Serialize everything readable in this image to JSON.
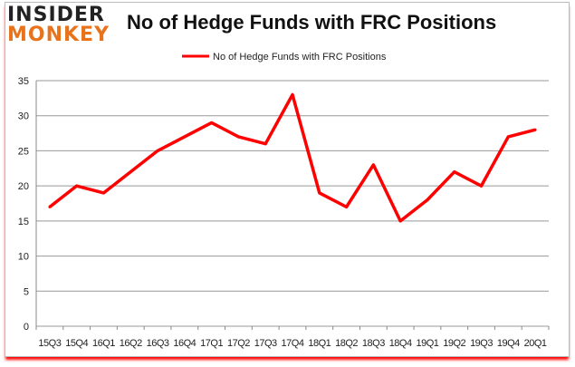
{
  "logo": {
    "line1": "INSIDER",
    "line2": "MONKEY"
  },
  "chart_data": {
    "type": "line",
    "title": "No of Hedge Funds with FRC Positions",
    "categories": [
      "15Q3",
      "15Q4",
      "16Q1",
      "16Q2",
      "16Q3",
      "16Q4",
      "17Q1",
      "17Q2",
      "17Q3",
      "17Q4",
      "18Q1",
      "18Q2",
      "18Q3",
      "18Q4",
      "19Q1",
      "19Q2",
      "19Q3",
      "19Q4",
      "20Q1"
    ],
    "series": [
      {
        "name": "No of Hedge Funds with FRC Positions",
        "color": "#ff0000",
        "values": [
          17,
          20,
          19,
          22,
          25,
          27,
          29,
          27,
          26,
          33,
          19,
          17,
          23,
          15,
          18,
          22,
          20,
          27,
          28
        ]
      }
    ],
    "ylim": [
      0,
      35
    ],
    "yticks": [
      0,
      5,
      10,
      15,
      20,
      25,
      30,
      35
    ],
    "grid": true,
    "legend": "top-center",
    "xlabel": "",
    "ylabel": ""
  }
}
